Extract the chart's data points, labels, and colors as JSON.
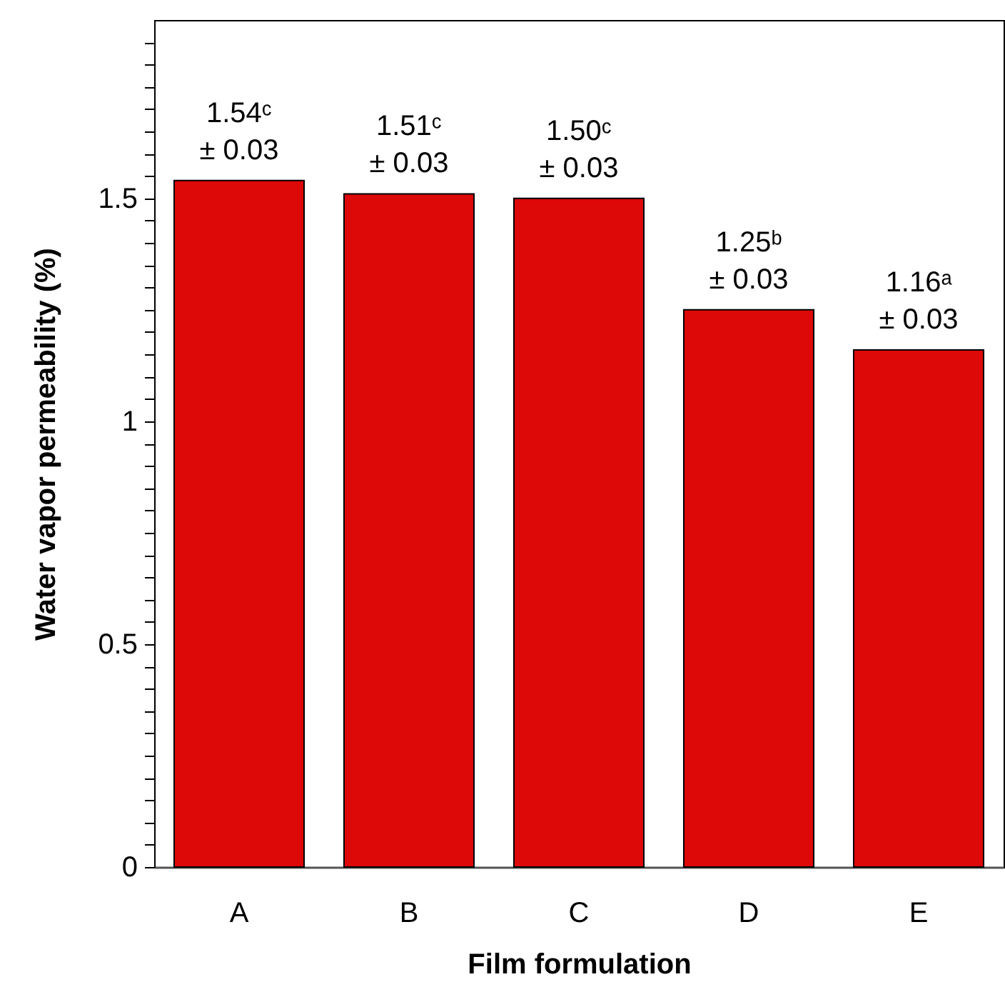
{
  "chart_data": {
    "type": "bar",
    "xlabel": "Film formulation",
    "ylabel": "Water vapor permeability (%)",
    "categories": [
      "A",
      "B",
      "C",
      "D",
      "E"
    ],
    "values": [
      1.54,
      1.51,
      1.5,
      1.25,
      1.16
    ],
    "color": "#dd0808",
    "value_labels": [
      "1.54ᶜ\n± 0.03",
      "1.51ᶜ\n± 0.03",
      "1.50ᶜ\n± 0.03",
      "1.25ᵇ\n± 0.03",
      "1.16ᵃ\n± 0.03"
    ],
    "ylim": [
      0,
      1.9
    ],
    "yticks": [
      0,
      {
        "value": 0.05,
        "label": null
      },
      {
        "value": 0.1,
        "label": null
      },
      {
        "value": 0.15,
        "label": null
      },
      {
        "value": 0.2,
        "label": null
      },
      {
        "value": 0.25,
        "label": null
      },
      {
        "value": 0.3,
        "label": null
      },
      {
        "value": 0.35,
        "label": null
      },
      {
        "value": 0.4,
        "label": null
      },
      {
        "value": 0.45,
        "label": null
      },
      0.5,
      {
        "value": 0.55,
        "label": null
      },
      {
        "value": 0.6,
        "label": null
      },
      {
        "value": 0.65,
        "label": null
      },
      {
        "value": 0.7,
        "label": null
      },
      {
        "value": 0.75,
        "label": null
      },
      {
        "value": 0.8,
        "label": null
      },
      {
        "value": 0.85,
        "label": null
      },
      {
        "value": 0.9,
        "label": null
      },
      {
        "value": 0.95,
        "label": null
      },
      1,
      {
        "value": 1.05,
        "label": null
      },
      {
        "value": 1.1,
        "label": null
      },
      {
        "value": 1.15,
        "label": null
      },
      {
        "value": 1.2,
        "label": null
      },
      {
        "value": 1.25,
        "label": null
      },
      {
        "value": 1.3,
        "label": null
      },
      {
        "value": 1.35,
        "label": null
      },
      {
        "value": 1.4,
        "label": null
      },
      {
        "value": 1.45,
        "label": null
      },
      1.5,
      {
        "value": 1.55,
        "label": null
      },
      {
        "value": 1.6,
        "label": null
      },
      {
        "value": 1.65,
        "label": null
      },
      {
        "value": 1.7,
        "label": null
      },
      {
        "value": 1.75,
        "label": null
      },
      {
        "value": 1.8,
        "label": null
      },
      {
        "value": 1.85,
        "label": null
      }
    ]
  }
}
